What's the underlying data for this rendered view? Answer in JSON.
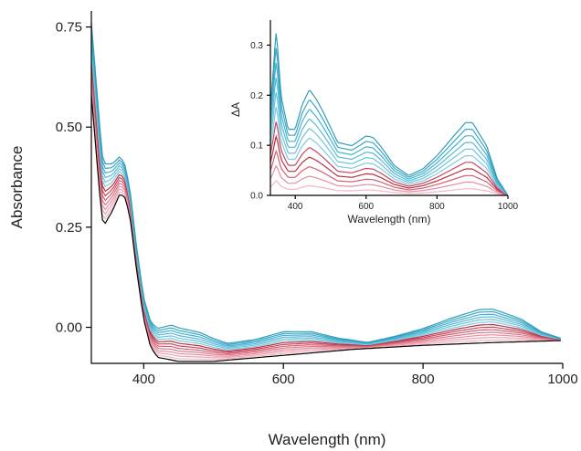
{
  "chart_data": [
    {
      "type": "line",
      "panel": "main",
      "xlabel": "Wavelength (nm)",
      "ylabel": "Absorbance",
      "xlim": [
        325,
        1000
      ],
      "ylim": [
        -0.09,
        0.79
      ],
      "xticks": [
        400,
        600,
        800,
        1000
      ],
      "xtick_labels": [
        "400",
        "600",
        "800",
        "1000"
      ],
      "yticks": [
        0.0,
        0.25,
        0.5,
        0.75
      ],
      "ytick_labels": [
        "0.00",
        "0.25",
        "0.50",
        "0.75"
      ],
      "grid": false,
      "legend": "none",
      "baseline": {
        "color": "#000000",
        "points": [
          [
            325,
            0.58
          ],
          [
            340,
            0.27
          ],
          [
            345,
            0.26
          ],
          [
            355,
            0.29
          ],
          [
            365,
            0.33
          ],
          [
            372,
            0.33
          ],
          [
            380,
            0.28
          ],
          [
            390,
            0.14
          ],
          [
            400,
            0.02
          ],
          [
            410,
            -0.05
          ],
          [
            420,
            -0.075
          ],
          [
            450,
            -0.085
          ],
          [
            500,
            -0.085
          ],
          [
            600,
            -0.07
          ],
          [
            700,
            -0.055
          ],
          [
            800,
            -0.045
          ],
          [
            900,
            -0.038
          ],
          [
            1000,
            -0.033
          ]
        ]
      },
      "series_colors": [
        "#f4b6c2",
        "#eda3b1",
        "#e58e9f",
        "#dc788b",
        "#d15f74",
        "#c6465e",
        "#b9323f",
        "#7fcbe0",
        "#6bc3dc",
        "#58bad6",
        "#46b1cf",
        "#3aa7c4",
        "#2f9db9"
      ],
      "spectrum_shape": {
        "x": [
          325,
          335,
          345,
          355,
          365,
          372,
          380,
          390,
          400,
          420,
          440,
          460,
          480,
          520,
          560,
          600,
          640,
          680,
          720,
          760,
          800,
          840,
          880,
          900,
          940,
          970,
          1000
        ],
        "delta_shape": [
          0.95,
          0.92,
          0.78,
          0.62,
          0.5,
          0.44,
          0.36,
          0.3,
          0.28,
          0.38,
          0.46,
          0.42,
          0.38,
          0.22,
          0.24,
          0.31,
          0.28,
          0.16,
          0.08,
          0.14,
          0.22,
          0.34,
          0.44,
          0.44,
          0.3,
          0.12,
          0.02
        ]
      },
      "max_delta": 0.19
    },
    {
      "type": "line",
      "panel": "inset",
      "xlabel": "Wavelength (nm)",
      "ylabel": "ΔA",
      "xlim": [
        330,
        1000
      ],
      "ylim": [
        0,
        0.35
      ],
      "xticks": [
        400,
        600,
        800,
        1000
      ],
      "xtick_labels": [
        "400",
        "600",
        "800",
        "1000"
      ],
      "yticks": [
        0.0,
        0.1,
        0.2,
        0.3
      ],
      "ytick_labels": [
        "0.0",
        "0.1",
        "0.2",
        "0.3"
      ],
      "grid": false,
      "legend": "none",
      "series_colors": [
        "#f4b6c2",
        "#e58e9f",
        "#d15f74",
        "#b9323f",
        "#c6465e",
        "#7fcbe0",
        "#6bc3dc",
        "#58bad6",
        "#46b1cf",
        "#3aa7c4",
        "#2f9db9"
      ],
      "spectrum_shape": {
        "x": [
          330,
          340,
          345,
          350,
          360,
          380,
          400,
          420,
          440,
          460,
          480,
          520,
          560,
          600,
          620,
          640,
          680,
          720,
          760,
          800,
          840,
          880,
          900,
          940,
          970,
          1000
        ],
        "delta_shape": [
          0.55,
          0.8,
          1.0,
          0.9,
          0.6,
          0.4,
          0.4,
          0.55,
          0.64,
          0.58,
          0.5,
          0.32,
          0.3,
          0.36,
          0.35,
          0.3,
          0.18,
          0.12,
          0.16,
          0.24,
          0.34,
          0.44,
          0.44,
          0.3,
          0.1,
          0.0
        ]
      },
      "max_delta": 0.33
    }
  ]
}
